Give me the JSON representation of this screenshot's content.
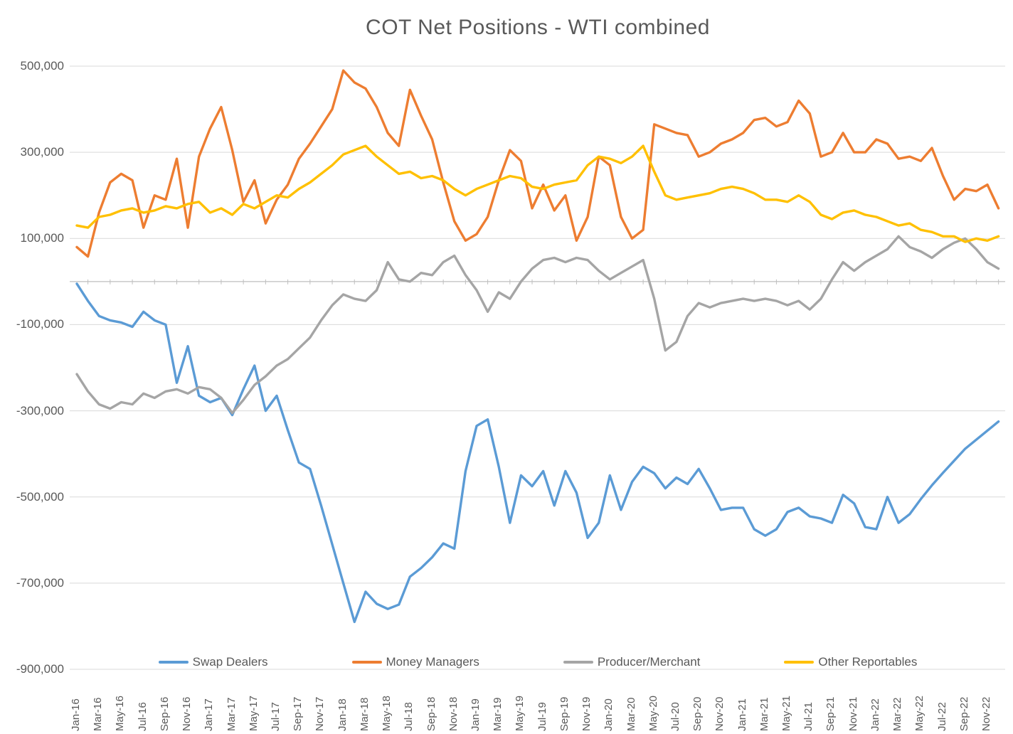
{
  "page": {
    "title": "COT Net Positions - WTI combined"
  },
  "chart_data": {
    "type": "line",
    "title": "COT Net Positions - WTI combined",
    "xlabel": "",
    "ylabel": "",
    "ylim": [
      -900000,
      500000
    ],
    "y_ticks": [
      500000,
      300000,
      100000,
      -100000,
      -300000,
      -500000,
      -700000,
      -900000
    ],
    "x_tick_step": 2,
    "grid": true,
    "legend_position": "bottom",
    "colors": {
      "gridline": "#D9D9D9",
      "axis": "#BFBFBF",
      "text": "#595959",
      "background": "#FFFFFF"
    },
    "categories": [
      "Jan-16",
      "Feb-16",
      "Mar-16",
      "Apr-16",
      "May-16",
      "Jun-16",
      "Jul-16",
      "Aug-16",
      "Sep-16",
      "Oct-16",
      "Nov-16",
      "Dec-16",
      "Jan-17",
      "Feb-17",
      "Mar-17",
      "Apr-17",
      "May-17",
      "Jun-17",
      "Jul-17",
      "Aug-17",
      "Sep-17",
      "Oct-17",
      "Nov-17",
      "Dec-17",
      "Jan-18",
      "Feb-18",
      "Mar-18",
      "Apr-18",
      "May-18",
      "Jun-18",
      "Jul-18",
      "Aug-18",
      "Sep-18",
      "Oct-18",
      "Nov-18",
      "Dec-18",
      "Jan-19",
      "Feb-19",
      "Mar-19",
      "Apr-19",
      "May-19",
      "Jun-19",
      "Jul-19",
      "Aug-19",
      "Sep-19",
      "Oct-19",
      "Nov-19",
      "Dec-19",
      "Jan-20",
      "Feb-20",
      "Mar-20",
      "Apr-20",
      "May-20",
      "Jun-20",
      "Jul-20",
      "Aug-20",
      "Sep-20",
      "Oct-20",
      "Nov-20",
      "Dec-20",
      "Jan-21",
      "Feb-21",
      "Mar-21",
      "Apr-21",
      "May-21",
      "Jun-21",
      "Jul-21",
      "Aug-21",
      "Sep-21",
      "Oct-21",
      "Nov-21",
      "Dec-21",
      "Jan-22",
      "Feb-22",
      "Mar-22",
      "Apr-22",
      "May-22",
      "Jun-22",
      "Jul-22",
      "Aug-22",
      "Sep-22",
      "Oct-22",
      "Nov-22",
      "Dec-22"
    ],
    "series": [
      {
        "name": "Swap Dealers",
        "color": "#5B9BD5",
        "values": [
          -5000,
          -45000,
          -80000,
          -90000,
          -95000,
          -105000,
          -70000,
          -90000,
          -100000,
          -235000,
          -150000,
          -265000,
          -280000,
          -270000,
          -310000,
          -250000,
          -195000,
          -300000,
          -265000,
          -345000,
          -420000,
          -435000,
          -520000,
          -610000,
          -700000,
          -790000,
          -720000,
          -748000,
          -760000,
          -750000,
          -685000,
          -665000,
          -640000,
          -608000,
          -620000,
          -440000,
          -335000,
          -320000,
          -430000,
          -560000,
          -450000,
          -475000,
          -440000,
          -520000,
          -440000,
          -490000,
          -595000,
          -560000,
          -450000,
          -530000,
          -465000,
          -430000,
          -445000,
          -480000,
          -455000,
          -470000,
          -435000,
          -480000,
          -530000,
          -525000,
          -525000,
          -575000,
          -590000,
          -575000,
          -535000,
          -525000,
          -545000,
          -550000,
          -560000,
          -495000,
          -515000,
          -570000,
          -575000,
          -500000,
          -560000,
          -540000,
          -505000,
          -473000,
          -444000,
          -416000,
          -388000,
          -367000,
          -346000,
          -325000
        ]
      },
      {
        "name": "Money Managers",
        "color": "#ED7D31",
        "values": [
          80000,
          58000,
          160000,
          230000,
          250000,
          235000,
          125000,
          200000,
          190000,
          285000,
          125000,
          290000,
          355000,
          405000,
          305000,
          185000,
          235000,
          135000,
          190000,
          225000,
          285000,
          320000,
          360000,
          400000,
          490000,
          462000,
          448000,
          405000,
          345000,
          315000,
          445000,
          385000,
          330000,
          230000,
          140000,
          95000,
          110000,
          150000,
          235000,
          305000,
          280000,
          170000,
          225000,
          165000,
          200000,
          95000,
          150000,
          290000,
          270000,
          150000,
          100000,
          120000,
          365000,
          355000,
          345000,
          340000,
          290000,
          300000,
          320000,
          330000,
          345000,
          375000,
          380000,
          360000,
          370000,
          420000,
          390000,
          290000,
          300000,
          345000,
          300000,
          300000,
          330000,
          320000,
          285000,
          290000,
          280000,
          310000,
          245000,
          190000,
          215000,
          210000,
          225000,
          170000
        ]
      },
      {
        "name": "Producer/Merchant",
        "color": "#A5A5A5",
        "values": [
          -215000,
          -255000,
          -285000,
          -295000,
          -280000,
          -285000,
          -260000,
          -270000,
          -255000,
          -250000,
          -260000,
          -245000,
          -250000,
          -270000,
          -305000,
          -275000,
          -240000,
          -220000,
          -195000,
          -180000,
          -155000,
          -130000,
          -90000,
          -55000,
          -30000,
          -40000,
          -45000,
          -20000,
          45000,
          5000,
          0,
          20000,
          15000,
          45000,
          60000,
          15000,
          -20000,
          -70000,
          -25000,
          -40000,
          0,
          30000,
          50000,
          55000,
          45000,
          55000,
          50000,
          25000,
          5000,
          20000,
          35000,
          50000,
          -40000,
          -160000,
          -140000,
          -80000,
          -50000,
          -60000,
          -50000,
          -45000,
          -40000,
          -45000,
          -40000,
          -45000,
          -55000,
          -45000,
          -65000,
          -40000,
          5000,
          45000,
          25000,
          45000,
          60000,
          75000,
          105000,
          80000,
          70000,
          55000,
          75000,
          90000,
          100000,
          75000,
          45000,
          30000
        ]
      },
      {
        "name": "Other Reportables",
        "color": "#FFC000",
        "values": [
          130000,
          125000,
          150000,
          155000,
          165000,
          170000,
          160000,
          165000,
          175000,
          170000,
          180000,
          185000,
          160000,
          170000,
          155000,
          180000,
          170000,
          185000,
          200000,
          195000,
          215000,
          230000,
          250000,
          270000,
          295000,
          305000,
          315000,
          290000,
          270000,
          250000,
          255000,
          240000,
          245000,
          235000,
          215000,
          200000,
          215000,
          225000,
          235000,
          245000,
          240000,
          220000,
          215000,
          225000,
          230000,
          235000,
          270000,
          290000,
          285000,
          275000,
          290000,
          315000,
          255000,
          200000,
          190000,
          195000,
          200000,
          205000,
          215000,
          220000,
          215000,
          205000,
          190000,
          190000,
          185000,
          200000,
          185000,
          155000,
          145000,
          160000,
          165000,
          155000,
          150000,
          140000,
          130000,
          135000,
          120000,
          115000,
          105000,
          105000,
          92000,
          100000,
          95000,
          105000
        ]
      }
    ]
  }
}
